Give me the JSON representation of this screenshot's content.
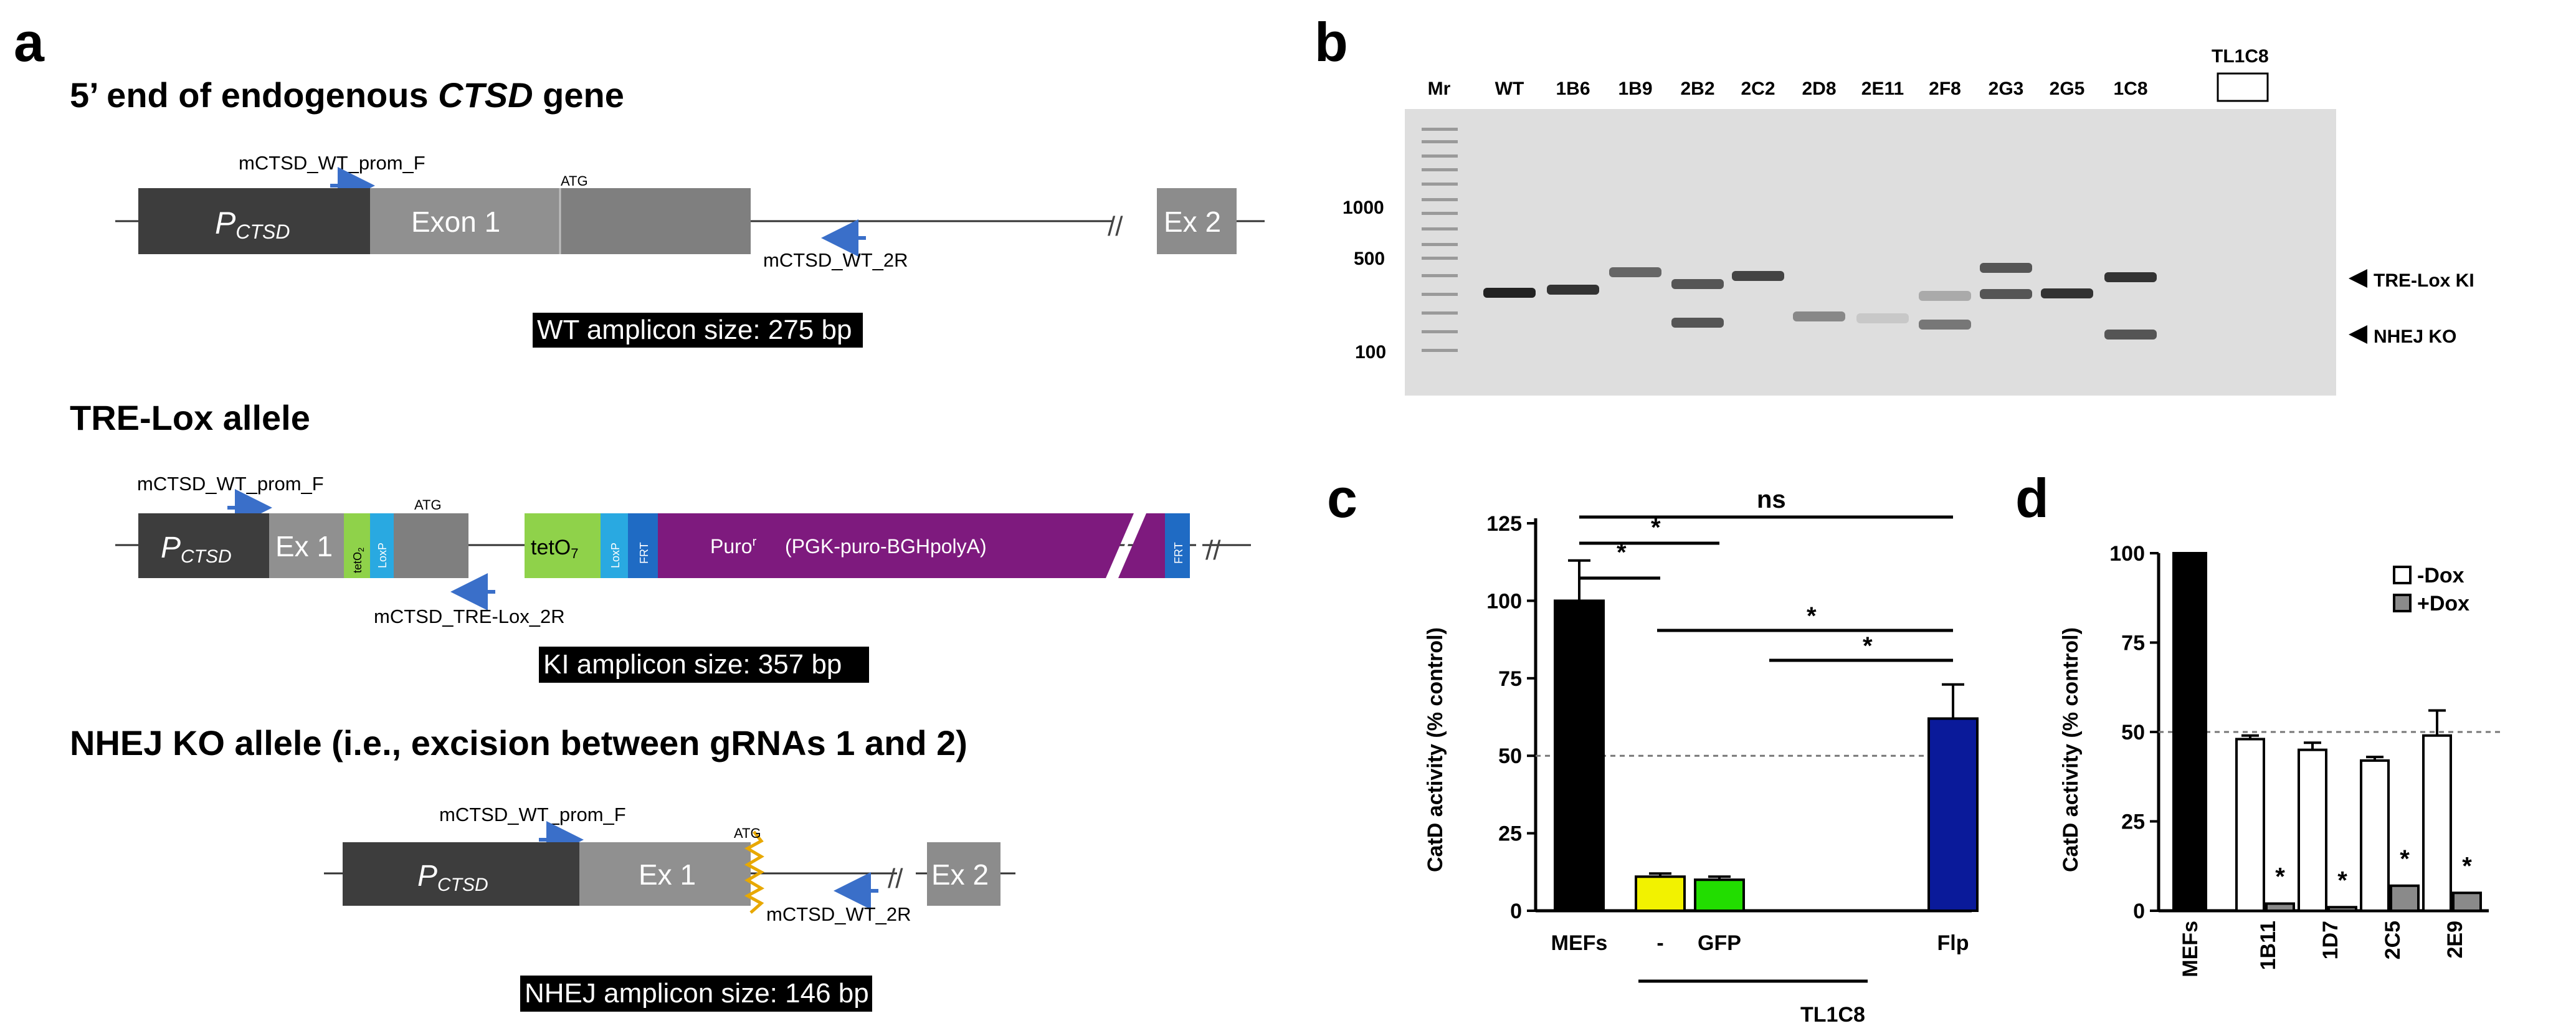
{
  "panel_a": {
    "letter": "a",
    "wt": {
      "title_prefix": "5’ end of endogenous ",
      "title_gene": "CTSD",
      "title_suffix": " gene",
      "primer_f": "mCTSD_WT_prom_F",
      "primer_r": "mCTSD_WT_2R",
      "promoter_p": "P",
      "promoter_sub": "CTSD",
      "exon1": "Exon 1",
      "atg": "ATG",
      "exon2": "Ex 2",
      "amplicon": "WT amplicon size: 275 bp"
    },
    "tre": {
      "title": "TRE-Lox allele",
      "primer_f": "mCTSD_WT_prom_F",
      "primer_r": "mCTSD_TRE-Lox_2R",
      "promoter_p": "P",
      "promoter_sub": "CTSD",
      "ex1": "Ex 1",
      "teto2": "tetO",
      "teto2_sub": "2",
      "loxp": "LoxP",
      "atg": "ATG",
      "teto7": "tetO",
      "teto7_sub": "7",
      "loxp2": "LoxP",
      "frt": "FRT",
      "puro": "Puro",
      "puro_sup": "r",
      "puro_cassette": "(PGK-puro-BGHpolyA)",
      "frt2": "FRT",
      "amplicon": "KI amplicon size: 357 bp"
    },
    "nhej": {
      "title": "NHEJ KO allele (i.e., excision between gRNAs 1 and 2)",
      "primer_f": "mCTSD_WT_prom_F",
      "primer_r": "mCTSD_WT_2R",
      "promoter_p": "P",
      "promoter_sub": "CTSD",
      "ex1": "Ex 1",
      "atg": "ATG",
      "exon2": "Ex 2",
      "amplicon": "NHEJ amplicon size: 146 bp"
    }
  },
  "panel_b": {
    "letter": "b",
    "header_extra": "TL1C8",
    "lanes": [
      "Mr",
      "WT",
      "1B6",
      "1B9",
      "2B2",
      "2C2",
      "2D8",
      "2E11",
      "2F8",
      "2G3",
      "2G5",
      "1C8"
    ],
    "ladder_labels": [
      "1000",
      "500",
      "100"
    ],
    "band_labels": [
      "TRE-Lox KI",
      "NHEJ KO"
    ]
  },
  "panel_c": {
    "letter": "c",
    "significance": [
      "ns",
      "*",
      "*",
      "*",
      "*"
    ],
    "group_label": "TL1C8",
    "colors": {
      "MEFs": "#000000",
      "-": "#f2f200",
      "GFP": "#22dd00",
      "Flp": "#0a1a9a"
    }
  },
  "panel_d": {
    "letter": "d",
    "stars": [
      "*",
      "*",
      "*",
      "*"
    ],
    "colors": {
      "-Dox": "#ffffff",
      "+Dox": "#8a8a8a",
      "MEFs": "#000000"
    }
  },
  "chart_data": [
    {
      "type": "bar",
      "panel": "c",
      "categories": [
        "MEFs",
        "-",
        "GFP",
        "Flp"
      ],
      "values": [
        100,
        11,
        10,
        62
      ],
      "errors": [
        13,
        1,
        1,
        11
      ],
      "ylabel": "CatD activity (% control)",
      "yticks": [
        "0",
        "25",
        "50",
        "75",
        "100",
        "125"
      ],
      "ylim": [
        0,
        125
      ],
      "reference_line": 50
    },
    {
      "type": "bar",
      "panel": "d",
      "categories": [
        "MEFs",
        "1B11",
        "1D7",
        "2C5",
        "2E9"
      ],
      "series": [
        {
          "name": "-Dox",
          "values": [
            100,
            48,
            45,
            42,
            49
          ],
          "errors": [
            0,
            1,
            2,
            1,
            7
          ]
        },
        {
          "name": "+Dox",
          "values": [
            null,
            2,
            1,
            7,
            5
          ],
          "errors": [
            null,
            0.5,
            0.3,
            0.5,
            0.8
          ]
        }
      ],
      "ylabel": "CatD activity (% control)",
      "yticks": [
        "0",
        "25",
        "50",
        "75",
        "100"
      ],
      "ylim": [
        0,
        100
      ],
      "reference_line": 50,
      "legend_position": "top-right"
    }
  ]
}
